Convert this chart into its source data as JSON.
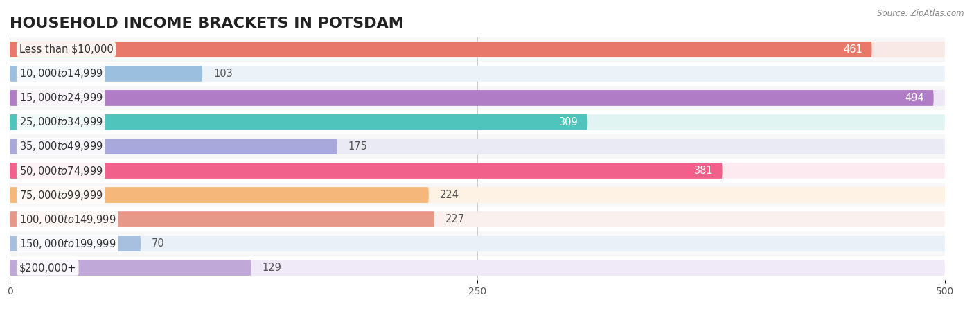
{
  "title": "HOUSEHOLD INCOME BRACKETS IN POTSDAM",
  "source": "Source: ZipAtlas.com",
  "categories": [
    "Less than $10,000",
    "$10,000 to $14,999",
    "$15,000 to $24,999",
    "$25,000 to $34,999",
    "$35,000 to $49,999",
    "$50,000 to $74,999",
    "$75,000 to $99,999",
    "$100,000 to $149,999",
    "$150,000 to $199,999",
    "$200,000+"
  ],
  "values": [
    461,
    103,
    494,
    309,
    175,
    381,
    224,
    227,
    70,
    129
  ],
  "bar_colors": [
    "#E8796A",
    "#9BBFDF",
    "#B07CC6",
    "#4FC4BC",
    "#A8A8DC",
    "#F0608A",
    "#F5B87A",
    "#E89888",
    "#A8C0E0",
    "#C0A8D8"
  ],
  "bar_bg_colors": [
    "#F8E8E6",
    "#EBF2F8",
    "#EDE6F4",
    "#E0F4F2",
    "#EAEAF5",
    "#FDEAF0",
    "#FEF2E4",
    "#FAF0EE",
    "#EAF0F8",
    "#F0EAF8"
  ],
  "value_label_inside": [
    true,
    false,
    true,
    true,
    false,
    true,
    false,
    false,
    false,
    false
  ],
  "xlim": [
    0,
    500
  ],
  "xticks": [
    0,
    250,
    500
  ],
  "background_color": "#ffffff",
  "row_alt_color": "#f0f0f0",
  "title_fontsize": 16,
  "label_fontsize": 10.5,
  "value_fontsize": 10.5
}
